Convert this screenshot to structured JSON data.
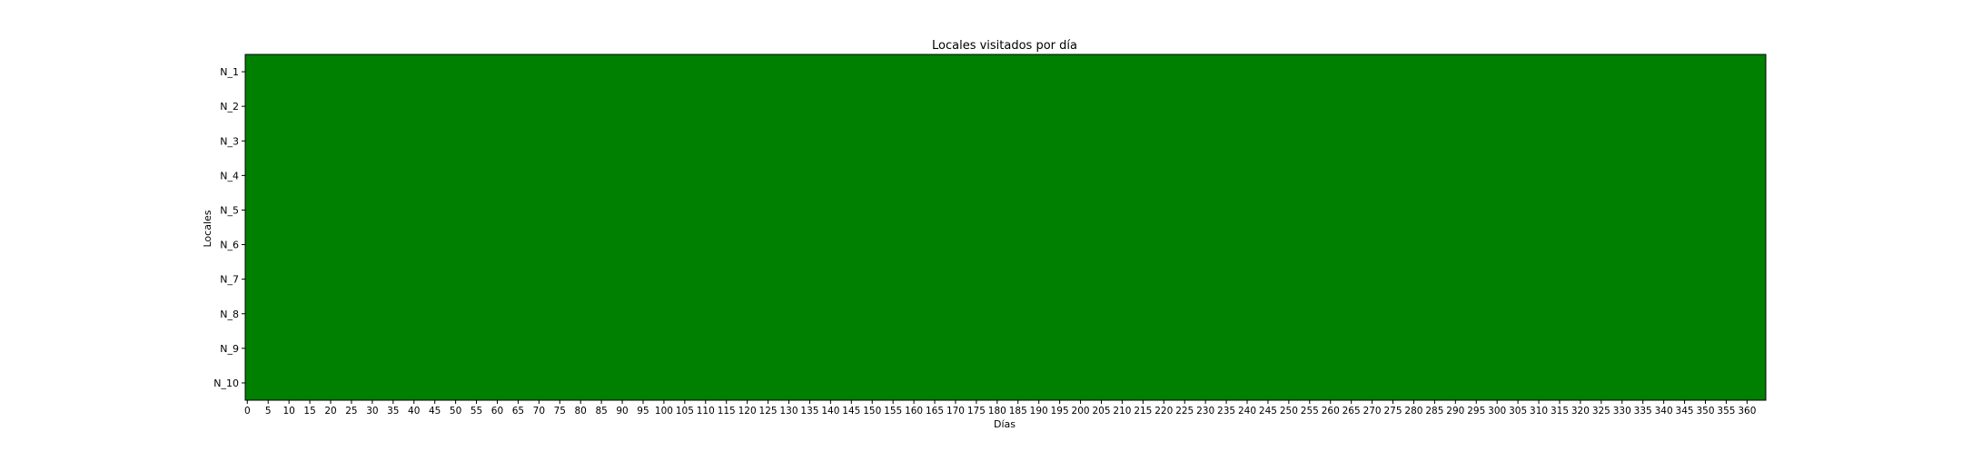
{
  "chart_data": {
    "type": "heatmap",
    "title": "Locales visitados por día",
    "xlabel": "Días",
    "ylabel": "Locales",
    "rows": [
      "N_1",
      "N_2",
      "N_3",
      "N_4",
      "N_5",
      "N_6",
      "N_7",
      "N_8",
      "N_9",
      "N_10"
    ],
    "x_range": [
      0,
      364
    ],
    "x_ticks": [
      0,
      5,
      10,
      15,
      20,
      25,
      30,
      35,
      40,
      45,
      50,
      55,
      60,
      65,
      70,
      75,
      80,
      85,
      90,
      95,
      100,
      105,
      110,
      115,
      120,
      125,
      130,
      135,
      140,
      145,
      150,
      155,
      160,
      165,
      170,
      175,
      180,
      185,
      190,
      195,
      200,
      205,
      210,
      215,
      220,
      225,
      230,
      235,
      240,
      245,
      250,
      255,
      260,
      265,
      270,
      275,
      280,
      285,
      290,
      295,
      300,
      305,
      310,
      315,
      320,
      325,
      330,
      335,
      340,
      345,
      350,
      355,
      360
    ],
    "cell_value": "visited",
    "cell_color": "#008000",
    "grid": false,
    "legend": "none"
  }
}
